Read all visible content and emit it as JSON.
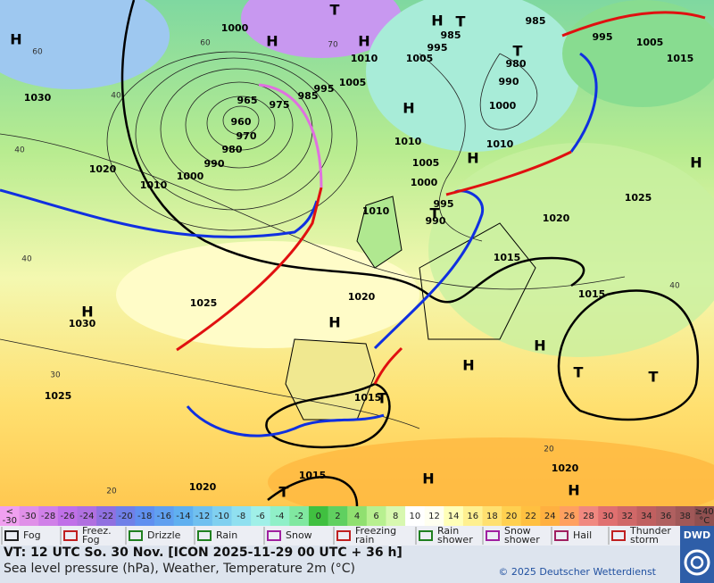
{
  "map": {
    "labels": [
      "T",
      "H",
      "1000",
      "H",
      "H",
      "1010",
      "60",
      "60",
      "70",
      "40",
      "40",
      "40",
      "30",
      "20",
      "40",
      "20",
      "1030",
      "975",
      "965",
      "960",
      "970",
      "980",
      "990",
      "1000",
      "1010",
      "1020",
      "995",
      "985",
      "1005",
      "H",
      "1010",
      "1005",
      "1000",
      "H",
      "995",
      "990",
      "1010",
      "T",
      "1005",
      "995",
      "985",
      "T",
      "H",
      "985",
      "995",
      "1005",
      "1015",
      "980",
      "T",
      "990",
      "1000",
      "1010",
      "1025",
      "1020",
      "H",
      "1015",
      "1015",
      "1020",
      "1025",
      "H",
      "H",
      "1030",
      "H",
      "H",
      "T",
      "T",
      "1015",
      "T",
      "1025",
      "1015",
      "T",
      "H",
      "1020",
      "H",
      "1020"
    ]
  },
  "legend": {
    "scale": {
      "low": {
        "top": "<",
        "bottom": "-30"
      },
      "values": [
        -30,
        -28,
        -26,
        -24,
        -22,
        -20,
        -18,
        -16,
        -14,
        -12,
        -10,
        -8,
        -6,
        -4,
        -2,
        0,
        2,
        4,
        6,
        8,
        10,
        12,
        14,
        16,
        18,
        20,
        22,
        24,
        26,
        28,
        30,
        32,
        34,
        36,
        38
      ],
      "high": {
        "top": "≥40",
        "bottom": "°C"
      },
      "colors": [
        "#f0a0f0",
        "#e090e8",
        "#d080e8",
        "#c070e8",
        "#b070e0",
        "#9070e0",
        "#7080e8",
        "#6090f0",
        "#60a0f0",
        "#60b0f0",
        "#70c0f0",
        "#80d0f0",
        "#90e0f0",
        "#a0f0e8",
        "#90f0c8",
        "#80e8a0",
        "#40c040",
        "#60d060",
        "#90e070",
        "#b8f090",
        "#d8f8b0",
        "#ffffff",
        "#fffff0",
        "#ffffb8",
        "#fff090",
        "#ffe070",
        "#ffd050",
        "#ffc040",
        "#ffb040",
        "#ffa060",
        "#f08880",
        "#e07070",
        "#d06868",
        "#c06060",
        "#b06060",
        "#a05858",
        "#905050"
      ]
    },
    "weather": [
      {
        "lines": [
          "Fog"
        ]
      },
      {
        "lines": [
          "Freez.",
          "Fog"
        ]
      },
      {
        "lines": [
          "Drizzle"
        ]
      },
      {
        "lines": [
          "Rain"
        ]
      },
      {
        "lines": [
          "Snow"
        ]
      },
      {
        "lines": [
          "Freezing",
          "rain"
        ]
      },
      {
        "lines": [
          "Rain",
          "shower"
        ]
      },
      {
        "lines": [
          "Snow",
          "shower"
        ]
      },
      {
        "lines": [
          "Hail"
        ]
      },
      {
        "lines": [
          "Thunder",
          "storm"
        ]
      }
    ]
  },
  "footer": {
    "valid_time": "VT: 12 UTC So.  30 Nov. [ICON 2025-11-29  00 UTC + 36 h]",
    "description": "Sea level pressure (hPa), Weather, Temperature 2m (°C)",
    "copyright": "© 2025 Deutscher Wetterdienst",
    "logo": "DWD"
  }
}
